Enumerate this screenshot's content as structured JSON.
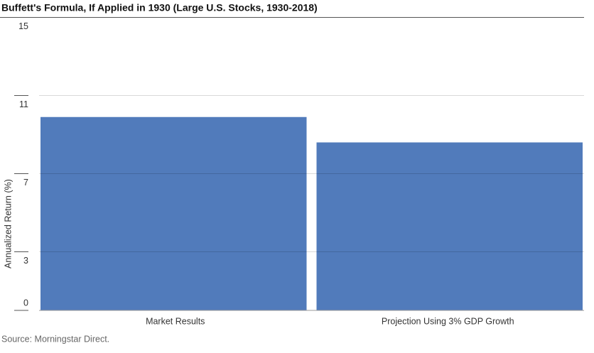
{
  "chart_data": {
    "type": "bar",
    "title": "Buffett's Formula, If Applied in 1930 (Large U.S. Stocks, 1930-2018)",
    "y_label": "Annualized Return (%)",
    "source": "Source: Morningstar Direct.",
    "categories": [
      "Market Results",
      "Projection Using 3% GDP Growth"
    ],
    "values": [
      9.9,
      8.6
    ],
    "color": "#4a76b8",
    "ylim": [
      0,
      15
    ],
    "yticks": [
      0,
      3,
      7,
      11,
      15
    ],
    "grid": true
  }
}
